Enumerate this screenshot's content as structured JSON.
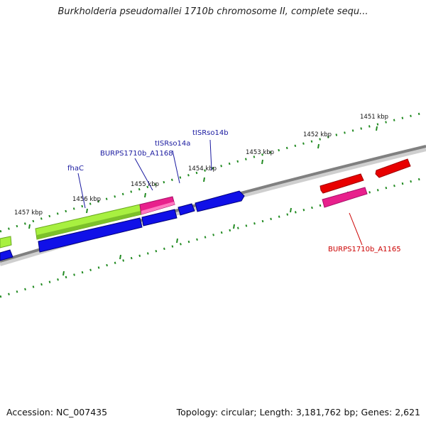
{
  "title": "Burkholderia pseudomallei 1710b chromosome II, complete sequ...",
  "footer": {
    "accession": "Accession: NC_007435",
    "summary": "Topology: circular; Length: 3,181,762 bp; Genes: 2,621"
  },
  "ticks": [
    {
      "label": "1451 kbp"
    },
    {
      "label": "1452 kbp"
    },
    {
      "label": "1453 kbp"
    },
    {
      "label": "1454 kbp"
    },
    {
      "label": "1455 kbp"
    },
    {
      "label": "1456 kbp"
    },
    {
      "label": "1457 kbp"
    }
  ],
  "gene_labels": [
    {
      "id": "fhac",
      "text": "fhaC",
      "color": "#1a1aa0"
    },
    {
      "id": "a1168",
      "text": "BURPS1710b_A1168",
      "color": "#1a1aa0"
    },
    {
      "id": "tisrso14a",
      "text": "tISRso14a",
      "color": "#1a1aa0"
    },
    {
      "id": "tisrso14b",
      "text": "tISRso14b",
      "color": "#1a1aa0"
    },
    {
      "id": "a1165",
      "text": "BURPS1710b_A1165",
      "color": "#cc0000"
    }
  ],
  "colors": {
    "backbone": "#808080",
    "tick": "#228b22",
    "cds_blue": "#1010e8",
    "cds_green": "#a8f040",
    "cds_pink": "#e8208c",
    "cds_red": "#e80000"
  }
}
